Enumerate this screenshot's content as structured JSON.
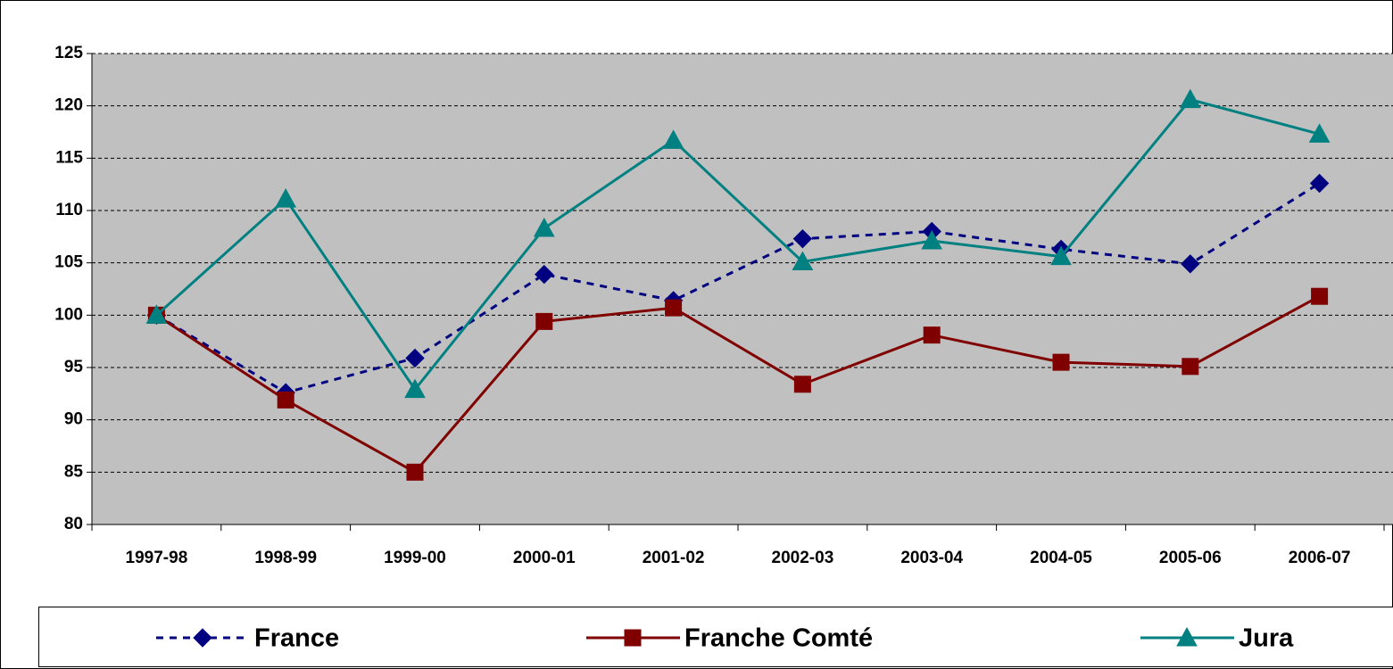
{
  "chart_data": {
    "type": "line",
    "categories": [
      "1997-98",
      "1998-99",
      "1999-00",
      "2000-01",
      "2001-02",
      "2002-03",
      "2003-04",
      "2004-05",
      "2005-06",
      "2006-07"
    ],
    "series": [
      {
        "name": "France",
        "color": "#000080",
        "marker": "diamond",
        "dash": true,
        "values": [
          100,
          92.6,
          95.9,
          103.9,
          101.4,
          107.3,
          108,
          106.3,
          104.9,
          112.6
        ]
      },
      {
        "name": "Franche Comté",
        "color": "#800000",
        "marker": "square",
        "dash": false,
        "values": [
          100,
          91.9,
          85,
          99.4,
          100.7,
          93.4,
          98.1,
          95.5,
          95.1,
          101.8
        ]
      },
      {
        "name": "Jura",
        "color": "#008080",
        "marker": "triangle",
        "dash": false,
        "values": [
          100,
          111.1,
          92.9,
          108.3,
          116.7,
          105.1,
          107.1,
          105.6,
          120.6,
          117.3
        ]
      }
    ],
    "ylim": [
      80,
      125
    ],
    "yticks": [
      80,
      85,
      90,
      95,
      100,
      105,
      110,
      115,
      120,
      125
    ],
    "grid": true,
    "legend": "bottom"
  }
}
